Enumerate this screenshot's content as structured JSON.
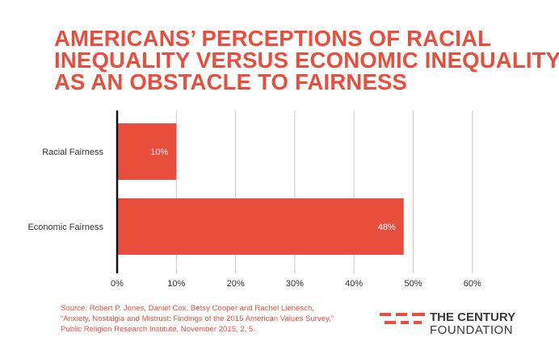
{
  "chart_data": {
    "type": "bar",
    "orientation": "horizontal",
    "title": [
      "AMERICANS’ PERCEPTIONS OF RACIAL",
      "INEQUALITY VERSUS ECONOMIC INEQUALITY",
      "AS AN OBSTACLE TO FAIRNESS"
    ],
    "categories": [
      "Racial Fairness",
      "Economic Fairness"
    ],
    "values": [
      10,
      48.4
    ],
    "data_labels": [
      "10%",
      "48%"
    ],
    "x_ticks": [
      "0%",
      "10%",
      "20%",
      "30%",
      "40%",
      "50%",
      "60%"
    ],
    "xlim": [
      0,
      60
    ],
    "grid": true,
    "bar_color": "#e94e3d",
    "grid_color": "#c8c8c8"
  },
  "source": {
    "label": "Source:",
    "lines": [
      "Robert P. Jones, Daniel Cox, Betsy Cooper and Rachel Lienesch,",
      "“Anxiety, Nostalgia and Mistrust: Findings of the 2015 American Values Survey,”",
      "Public Religion Research Institute, November 2015, 2, 5."
    ]
  },
  "logo": {
    "line1": "THE CENTURY",
    "line2": "FOUNDATION",
    "accent_color": "#e94e3d"
  }
}
